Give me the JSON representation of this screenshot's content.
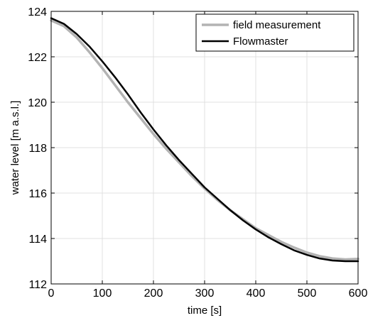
{
  "chart_data": {
    "type": "line",
    "title": "",
    "xlabel": "time [s]",
    "ylabel": "water level [m a.s.l.]",
    "xlim": [
      0,
      600
    ],
    "ylim": [
      112,
      124
    ],
    "xticks": [
      0,
      100,
      200,
      300,
      400,
      500,
      600
    ],
    "yticks": [
      112,
      114,
      116,
      118,
      120,
      122,
      124
    ],
    "xtick_labels": [
      "0",
      "100",
      "200",
      "300",
      "400",
      "500",
      "600"
    ],
    "ytick_labels": [
      "112",
      "114",
      "116",
      "118",
      "120",
      "122",
      "124"
    ],
    "grid": true,
    "legend_position": "top-right",
    "series": [
      {
        "name": "field measurement",
        "color": "#b3b3b3",
        "x": [
          0,
          25,
          50,
          75,
          100,
          125,
          150,
          175,
          200,
          225,
          250,
          275,
          300,
          325,
          350,
          375,
          400,
          425,
          450,
          475,
          500,
          525,
          550,
          575,
          600
        ],
        "y": [
          123.6,
          123.35,
          122.85,
          122.2,
          121.5,
          120.75,
          120.0,
          119.3,
          118.6,
          117.95,
          117.35,
          116.75,
          116.2,
          115.7,
          115.25,
          114.85,
          114.45,
          114.15,
          113.85,
          113.6,
          113.38,
          113.22,
          113.12,
          113.08,
          113.1
        ]
      },
      {
        "name": "Flowmaster",
        "color": "#000000",
        "x": [
          0,
          25,
          50,
          75,
          100,
          125,
          150,
          175,
          200,
          225,
          250,
          275,
          300,
          325,
          350,
          375,
          400,
          425,
          450,
          475,
          500,
          525,
          550,
          575,
          600
        ],
        "y": [
          123.7,
          123.45,
          123.0,
          122.45,
          121.8,
          121.1,
          120.35,
          119.55,
          118.8,
          118.1,
          117.45,
          116.85,
          116.25,
          115.75,
          115.25,
          114.8,
          114.4,
          114.05,
          113.75,
          113.48,
          113.28,
          113.12,
          113.03,
          113.0,
          113.0
        ]
      }
    ]
  }
}
